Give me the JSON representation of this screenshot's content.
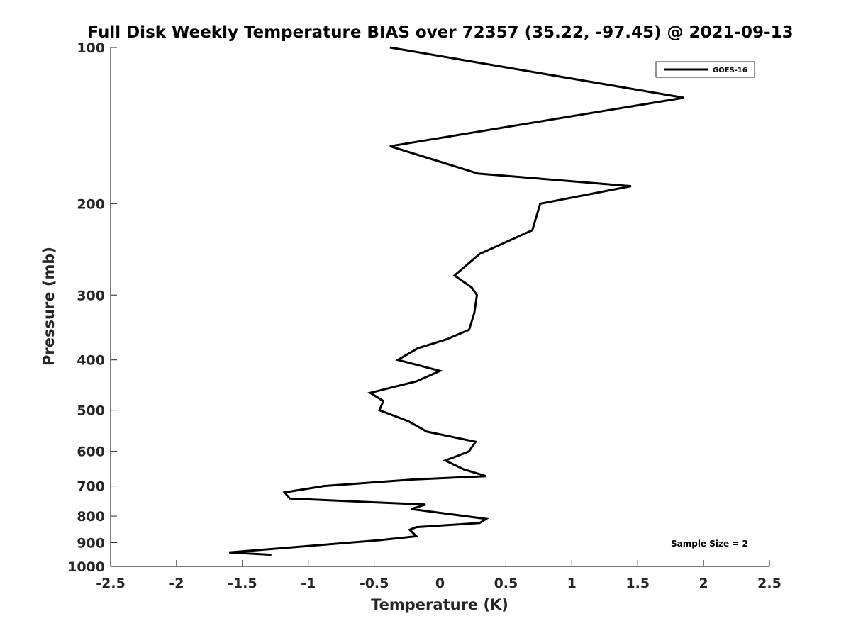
{
  "chart_data": {
    "type": "line",
    "title": "Full Disk Weekly Temperature BIAS over 72357 (35.22, -97.45) @ 2021-09-13",
    "xlabel": "Temperature (K)",
    "ylabel": "Pressure (mb)",
    "xlim": [
      -2.5,
      2.5
    ],
    "ylim": [
      100,
      1000
    ],
    "y_scale": "log",
    "y_reversed": true,
    "x_ticks": [
      "-2.5",
      "-2",
      "-1.5",
      "-1",
      "-0.5",
      "0",
      "0.5",
      "1",
      "1.5",
      "2",
      "2.5"
    ],
    "x_tick_values": [
      -2.5,
      -2,
      -1.5,
      -1,
      -0.5,
      0,
      0.5,
      1,
      1.5,
      2,
      2.5
    ],
    "y_ticks": [
      "100",
      "200",
      "300",
      "400",
      "500",
      "600",
      "700",
      "800",
      "900",
      "1000"
    ],
    "y_tick_values": [
      100,
      200,
      300,
      400,
      500,
      600,
      700,
      800,
      900,
      1000
    ],
    "grid": false,
    "legend_position": "top-right",
    "annotation": "Sample Size = 2",
    "series": [
      {
        "name": "GOES-16",
        "color": "#000000",
        "points": [
          [
            -0.38,
            100
          ],
          [
            1.85,
            125
          ],
          [
            -0.38,
            155
          ],
          [
            0.29,
            175
          ],
          [
            1.45,
            185
          ],
          [
            0.76,
            200
          ],
          [
            0.7,
            225
          ],
          [
            0.3,
            250
          ],
          [
            0.11,
            275
          ],
          [
            0.24,
            290
          ],
          [
            0.28,
            300
          ],
          [
            0.26,
            325
          ],
          [
            0.22,
            350
          ],
          [
            0.05,
            365
          ],
          [
            -0.17,
            380
          ],
          [
            -0.32,
            400
          ],
          [
            0.0,
            420
          ],
          [
            -0.18,
            440
          ],
          [
            -0.53,
            463
          ],
          [
            -0.43,
            480
          ],
          [
            -0.46,
            500
          ],
          [
            -0.24,
            525
          ],
          [
            -0.1,
            550
          ],
          [
            0.27,
            575
          ],
          [
            0.22,
            600
          ],
          [
            0.15,
            610
          ],
          [
            0.04,
            625
          ],
          [
            0.18,
            650
          ],
          [
            0.35,
            670
          ],
          [
            -0.2,
            680
          ],
          [
            -0.88,
            700
          ],
          [
            -1.18,
            720
          ],
          [
            -1.14,
            740
          ],
          [
            -0.11,
            760
          ],
          [
            -0.22,
            775
          ],
          [
            0.35,
            810
          ],
          [
            0.3,
            825
          ],
          [
            -0.18,
            840
          ],
          [
            -0.23,
            850
          ],
          [
            -0.18,
            875
          ],
          [
            -0.46,
            890
          ],
          [
            -1.6,
            940
          ],
          [
            -1.28,
            950
          ]
        ]
      }
    ]
  }
}
